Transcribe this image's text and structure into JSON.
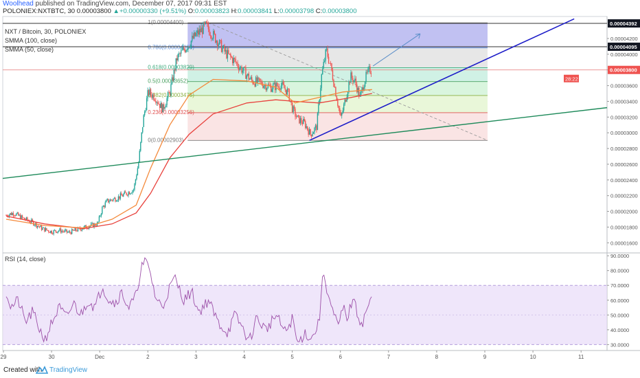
{
  "header": {
    "author": "Woolhead",
    "published_text": "published on TradingView.com, December 07, 2017 09:31 EST",
    "symbol": "POLONIEX:NXTBTC, 30",
    "price": "0.00003800",
    "change": "+0.00000330 (+9.51%)",
    "o_label": "O:",
    "o_value": "0.00003823",
    "h_label": "H:",
    "h_value": "0.00003841",
    "l_label": "L:",
    "l_value": "0.00003798",
    "c_label": "C:",
    "c_value": "0.00003800"
  },
  "legend": {
    "title": "NXT / Bitcoin, 30, POLONIEX",
    "smma100": "SMMA (100, close)",
    "smma50": "SMMA (50, close)"
  },
  "rsi_legend": "RSI (14, close)",
  "price_badges": {
    "level_a": "0.00004392",
    "level_b": "0.00004095",
    "last": "0.00003800",
    "countdown": "28:22"
  },
  "fib_labels": [
    "1(0.00004400)",
    "0.786(0.00004080)",
    "0.618(0.00003829)",
    "0.5(0.00003652)",
    "0.382(0.00003475)",
    "0.236(0.00003256)",
    "0(0.00002903)"
  ],
  "footer": {
    "created_with": "Created with",
    "brand": "TradingView"
  },
  "colors": {
    "up_candle": "#26a69a",
    "down_candle": "#ef5350",
    "smma100": "#e8413c",
    "smma50": "#f48a3c",
    "rsi_line": "#9c4fa8",
    "rsi_band": "#e8dcf8",
    "trend_blue": "#1c1cc8",
    "trend_green": "#1e8a5a",
    "arrow": "#5c8fc9"
  },
  "chart_data": {
    "type": "candlestick",
    "symbol": "POLONIEX:NXTBTC",
    "interval": "30",
    "x_tick_labels": [
      "29",
      "30",
      "Dec",
      "2",
      "3",
      "4",
      "5",
      "6",
      "7",
      "8",
      "9",
      "10",
      "11"
    ],
    "price_axis": {
      "ticks": [
        "0.00004200",
        "0.00004000",
        "0.00003800",
        "0.00003600",
        "0.00003400",
        "0.00003200",
        "0.00003000",
        "0.00002800",
        "0.00002600",
        "0.00002400",
        "0.00002200",
        "0.00002000",
        "0.00001800",
        "0.00001600"
      ],
      "range": [
        1.48e-05,
        4.48e-05
      ]
    },
    "rsi_axis": {
      "ticks": [
        "90.0000",
        "80.0000",
        "70.0000",
        "60.0000",
        "50.0000",
        "40.0000",
        "30.0000"
      ],
      "range": [
        26,
        91
      ],
      "band": [
        30,
        70
      ]
    },
    "fibonacci_levels": [
      {
        "ratio": 1,
        "price": 4.4e-05
      },
      {
        "ratio": 0.786,
        "price": 4.08e-05
      },
      {
        "ratio": 0.618,
        "price": 3.829e-05
      },
      {
        "ratio": 0.5,
        "price": 3.652e-05
      },
      {
        "ratio": 0.382,
        "price": 3.475e-05
      },
      {
        "ratio": 0.236,
        "price": 3.256e-05
      },
      {
        "ratio": 0,
        "price": 2.903e-05
      }
    ],
    "horizontal_lines": [
      4.392e-05,
      4.095e-05,
      3.8e-05
    ],
    "close_path": [
      {
        "x": 0,
        "price": 1.95e-05
      },
      {
        "x": 0.15,
        "price": 1.98e-05
      },
      {
        "x": 0.35,
        "price": 1.91e-05
      },
      {
        "x": 0.55,
        "price": 1.86e-05
      },
      {
        "x": 0.75,
        "price": 1.78e-05
      },
      {
        "x": 0.95,
        "price": 1.74e-05
      },
      {
        "x": 1.1,
        "price": 1.76e-05
      },
      {
        "x": 1.3,
        "price": 1.73e-05
      },
      {
        "x": 1.5,
        "price": 1.77e-05
      },
      {
        "x": 1.7,
        "price": 1.81e-05
      },
      {
        "x": 1.9,
        "price": 1.84e-05
      },
      {
        "x": 2.0,
        "price": 2.05e-05
      },
      {
        "x": 2.1,
        "price": 2.13e-05
      },
      {
        "x": 2.3,
        "price": 2.17e-05
      },
      {
        "x": 2.5,
        "price": 2.23e-05
      },
      {
        "x": 2.65,
        "price": 2.28e-05
      },
      {
        "x": 2.75,
        "price": 2.62e-05
      },
      {
        "x": 2.85,
        "price": 3.18e-05
      },
      {
        "x": 2.95,
        "price": 3.52e-05
      },
      {
        "x": 3.1,
        "price": 3.45e-05
      },
      {
        "x": 3.25,
        "price": 3.3e-05
      },
      {
        "x": 3.4,
        "price": 3.52e-05
      },
      {
        "x": 3.55,
        "price": 3.95e-05
      },
      {
        "x": 3.75,
        "price": 4.1e-05
      },
      {
        "x": 3.95,
        "price": 4.25e-05
      },
      {
        "x": 4.15,
        "price": 4.36e-05
      },
      {
        "x": 4.35,
        "price": 4.2e-05
      },
      {
        "x": 4.55,
        "price": 4.02e-05
      },
      {
        "x": 4.75,
        "price": 3.91e-05
      },
      {
        "x": 4.95,
        "price": 3.77e-05
      },
      {
        "x": 5.1,
        "price": 3.66e-05
      },
      {
        "x": 5.3,
        "price": 3.63e-05
      },
      {
        "x": 5.5,
        "price": 3.58e-05
      },
      {
        "x": 5.7,
        "price": 3.61e-05
      },
      {
        "x": 5.85,
        "price": 3.52e-05
      },
      {
        "x": 5.95,
        "price": 3.3e-05
      },
      {
        "x": 6.05,
        "price": 3.18e-05
      },
      {
        "x": 6.2,
        "price": 3.12e-05
      },
      {
        "x": 6.32,
        "price": 2.98e-05
      },
      {
        "x": 6.45,
        "price": 3.08e-05
      },
      {
        "x": 6.55,
        "price": 3.72e-05
      },
      {
        "x": 6.65,
        "price": 4.05e-05
      },
      {
        "x": 6.75,
        "price": 3.82e-05
      },
      {
        "x": 6.85,
        "price": 3.5e-05
      },
      {
        "x": 6.95,
        "price": 3.18e-05
      },
      {
        "x": 7.05,
        "price": 3.43e-05
      },
      {
        "x": 7.15,
        "price": 3.72e-05
      },
      {
        "x": 7.25,
        "price": 3.65e-05
      },
      {
        "x": 7.35,
        "price": 3.45e-05
      },
      {
        "x": 7.45,
        "price": 3.68e-05
      },
      {
        "x": 7.55,
        "price": 3.8e-05
      },
      {
        "x": 7.6,
        "price": 3.8e-05
      }
    ],
    "smma_100": [
      {
        "x": 0,
        "price": 1.94e-05
      },
      {
        "x": 0.8,
        "price": 1.84e-05
      },
      {
        "x": 1.6,
        "price": 1.78e-05
      },
      {
        "x": 2.2,
        "price": 1.84e-05
      },
      {
        "x": 2.7,
        "price": 1.98e-05
      },
      {
        "x": 3.0,
        "price": 2.23e-05
      },
      {
        "x": 3.4,
        "price": 2.68e-05
      },
      {
        "x": 3.8,
        "price": 2.98e-05
      },
      {
        "x": 4.3,
        "price": 3.24e-05
      },
      {
        "x": 5.0,
        "price": 3.38e-05
      },
      {
        "x": 5.6,
        "price": 3.42e-05
      },
      {
        "x": 6.0,
        "price": 3.4e-05
      },
      {
        "x": 6.5,
        "price": 3.38e-05
      },
      {
        "x": 7.0,
        "price": 3.43e-05
      },
      {
        "x": 7.6,
        "price": 3.5e-05
      }
    ],
    "smma_50": [
      {
        "x": 0,
        "price": 1.9e-05
      },
      {
        "x": 0.8,
        "price": 1.82e-05
      },
      {
        "x": 1.6,
        "price": 1.79e-05
      },
      {
        "x": 2.2,
        "price": 1.9e-05
      },
      {
        "x": 2.7,
        "price": 2.08e-05
      },
      {
        "x": 3.0,
        "price": 2.55e-05
      },
      {
        "x": 3.4,
        "price": 3.1e-05
      },
      {
        "x": 3.8,
        "price": 3.48e-05
      },
      {
        "x": 4.3,
        "price": 3.68e-05
      },
      {
        "x": 5.0,
        "price": 3.66e-05
      },
      {
        "x": 5.6,
        "price": 3.58e-05
      },
      {
        "x": 6.0,
        "price": 3.38e-05
      },
      {
        "x": 6.5,
        "price": 3.45e-05
      },
      {
        "x": 7.0,
        "price": 3.52e-05
      },
      {
        "x": 7.6,
        "price": 3.55e-05
      }
    ],
    "rsi": [
      {
        "x": 0,
        "v": 66
      },
      {
        "x": 0.1,
        "v": 55
      },
      {
        "x": 0.25,
        "v": 60
      },
      {
        "x": 0.4,
        "v": 45
      },
      {
        "x": 0.55,
        "v": 52
      },
      {
        "x": 0.7,
        "v": 40
      },
      {
        "x": 0.8,
        "v": 33
      },
      {
        "x": 0.95,
        "v": 45
      },
      {
        "x": 1.1,
        "v": 55
      },
      {
        "x": 1.25,
        "v": 48
      },
      {
        "x": 1.4,
        "v": 58
      },
      {
        "x": 1.55,
        "v": 50
      },
      {
        "x": 1.7,
        "v": 60
      },
      {
        "x": 1.85,
        "v": 55
      },
      {
        "x": 2.0,
        "v": 70
      },
      {
        "x": 2.1,
        "v": 62
      },
      {
        "x": 2.25,
        "v": 58
      },
      {
        "x": 2.4,
        "v": 65
      },
      {
        "x": 2.55,
        "v": 55
      },
      {
        "x": 2.7,
        "v": 63
      },
      {
        "x": 2.8,
        "v": 82
      },
      {
        "x": 2.9,
        "v": 86
      },
      {
        "x": 3.0,
        "v": 78
      },
      {
        "x": 3.1,
        "v": 62
      },
      {
        "x": 3.25,
        "v": 55
      },
      {
        "x": 3.35,
        "v": 65
      },
      {
        "x": 3.5,
        "v": 75
      },
      {
        "x": 3.7,
        "v": 60
      },
      {
        "x": 3.85,
        "v": 66
      },
      {
        "x": 4.0,
        "v": 52
      },
      {
        "x": 4.2,
        "v": 60
      },
      {
        "x": 4.4,
        "v": 45
      },
      {
        "x": 4.6,
        "v": 38
      },
      {
        "x": 4.75,
        "v": 50
      },
      {
        "x": 4.9,
        "v": 42
      },
      {
        "x": 5.05,
        "v": 32
      },
      {
        "x": 5.2,
        "v": 48
      },
      {
        "x": 5.4,
        "v": 40
      },
      {
        "x": 5.6,
        "v": 50
      },
      {
        "x": 5.8,
        "v": 38
      },
      {
        "x": 5.95,
        "v": 48
      },
      {
        "x": 6.05,
        "v": 30
      },
      {
        "x": 6.2,
        "v": 38
      },
      {
        "x": 6.35,
        "v": 34
      },
      {
        "x": 6.5,
        "v": 45
      },
      {
        "x": 6.55,
        "v": 68
      },
      {
        "x": 6.6,
        "v": 78
      },
      {
        "x": 6.7,
        "v": 62
      },
      {
        "x": 6.8,
        "v": 50
      },
      {
        "x": 6.9,
        "v": 42
      },
      {
        "x": 7.0,
        "v": 55
      },
      {
        "x": 7.1,
        "v": 48
      },
      {
        "x": 7.2,
        "v": 62
      },
      {
        "x": 7.3,
        "v": 50
      },
      {
        "x": 7.4,
        "v": 44
      },
      {
        "x": 7.5,
        "v": 55
      },
      {
        "x": 7.6,
        "v": 61
      }
    ]
  }
}
